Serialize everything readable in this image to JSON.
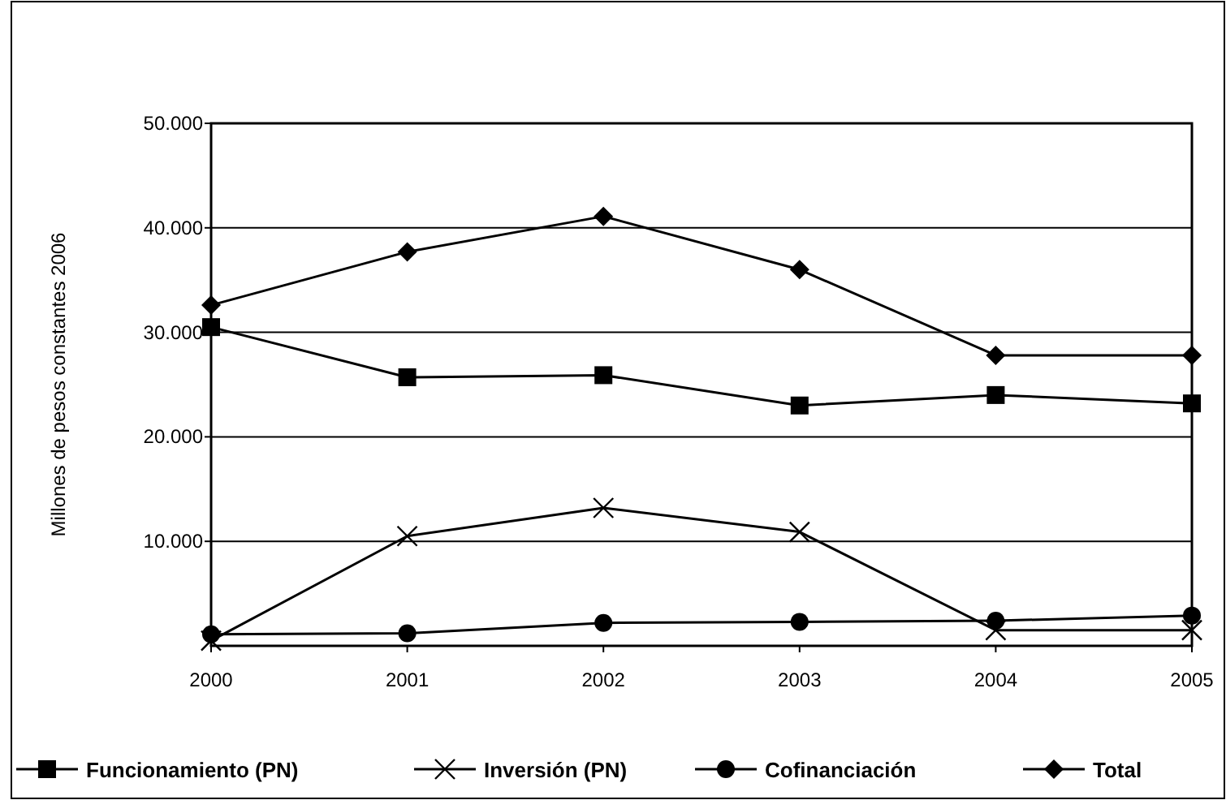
{
  "chart_data": {
    "type": "line",
    "ylabel": "Millones de pesos constantes 2006",
    "x": [
      2000,
      2001,
      2002,
      2003,
      2004,
      2005
    ],
    "xlim": [
      2000,
      2005
    ],
    "xticks": [
      2000,
      2001,
      2002,
      2003,
      2004,
      2005
    ],
    "ylim": [
      0,
      50000
    ],
    "yticks": [
      {
        "value": 10000,
        "label": "10.000"
      },
      {
        "value": 20000,
        "label": "20.000"
      },
      {
        "value": 30000,
        "label": "30.000"
      },
      {
        "value": 40000,
        "label": "40.000"
      },
      {
        "value": 50000,
        "label": "50.000"
      }
    ],
    "grid": "y",
    "legend": "bottom",
    "line_style": "solid",
    "series": [
      {
        "name": "Funcionamiento (PN)",
        "color": "#000000",
        "marker": "square",
        "values": [
          30500,
          25700,
          25900,
          23000,
          24000,
          23200
        ]
      },
      {
        "name": "Inversión (PN)",
        "color": "#000000",
        "marker": "cross",
        "values": [
          500,
          10500,
          13200,
          10900,
          1500,
          1500
        ]
      },
      {
        "name": "Cofinanciación",
        "color": "#000000",
        "marker": "circle",
        "values": [
          1100,
          1200,
          2200,
          2300,
          2400,
          2900
        ]
      },
      {
        "name": "Total",
        "color": "#000000",
        "marker": "diamond",
        "values": [
          32600,
          37700,
          41100,
          36000,
          27800,
          27800
        ]
      }
    ]
  }
}
